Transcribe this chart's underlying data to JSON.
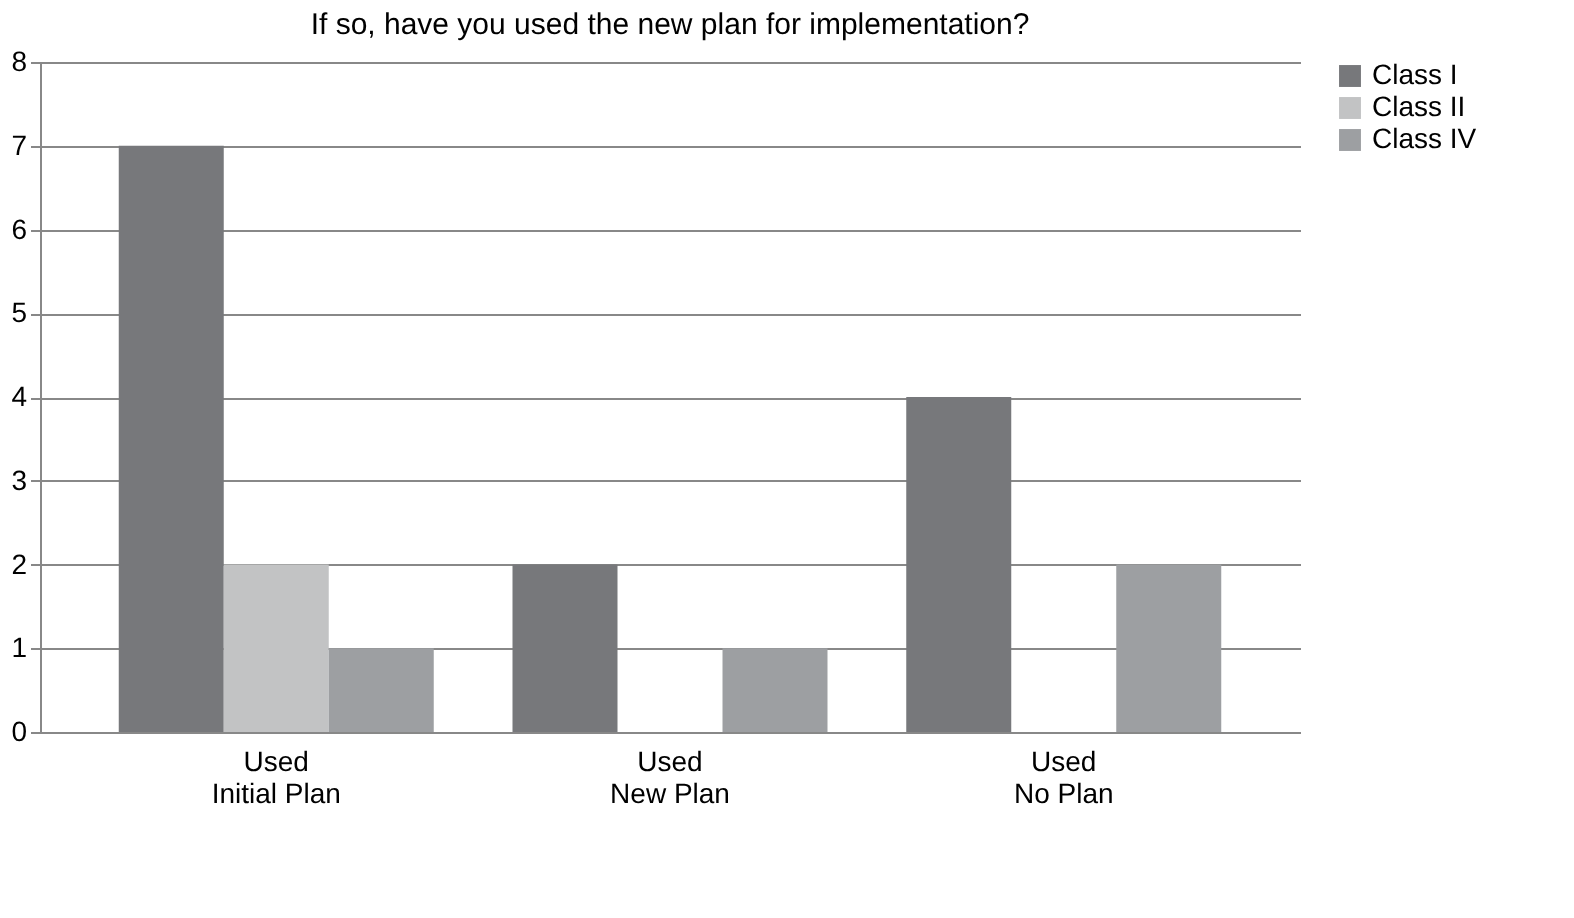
{
  "chart_data": {
    "type": "bar",
    "title": "If so, have you used the new plan for implementation?",
    "categories": [
      "Used\nInitial Plan",
      "Used\nNew Plan",
      "Used\nNo Plan"
    ],
    "series": [
      {
        "name": "Class I",
        "color": "#77787b",
        "values": [
          7,
          2,
          4
        ]
      },
      {
        "name": "Class II",
        "color": "#c2c3c4",
        "values": [
          2,
          0,
          0
        ]
      },
      {
        "name": "Class IV",
        "color": "#9d9fa2",
        "values": [
          1,
          1,
          2
        ]
      }
    ],
    "ylim": [
      0,
      8
    ],
    "yticks": [
      0,
      1,
      2,
      3,
      4,
      5,
      6,
      7,
      8
    ],
    "grid": "y",
    "legend": "right"
  }
}
